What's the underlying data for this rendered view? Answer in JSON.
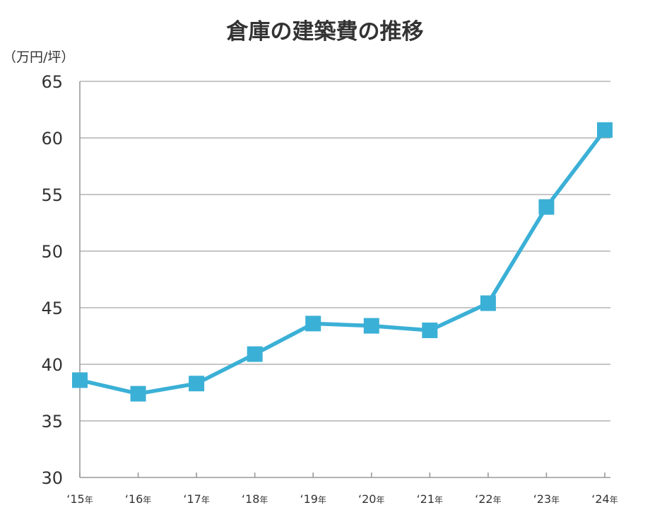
{
  "chart_data": {
    "type": "line",
    "title": "倉庫の建築費の推移",
    "ylabel": "（万円/坪）",
    "xlabel": "",
    "categories": [
      "‘15年",
      "‘16年",
      "‘17年",
      "‘18年",
      "‘19年",
      "‘20年",
      "‘21年",
      "‘22年",
      "‘23年",
      "‘24年"
    ],
    "series": [
      {
        "values": [
          38.6,
          37.4,
          38.3,
          40.9,
          43.6,
          43.4,
          43.0,
          45.4,
          53.9,
          60.7
        ]
      }
    ],
    "ylim": [
      30,
      65
    ],
    "yticks": [
      "30",
      "35",
      "40",
      "45",
      "50",
      "55",
      "60",
      "65"
    ],
    "grid": true,
    "legend": "none",
    "colors": {
      "series": "#3bb0d6",
      "grid": "#b3b3b3",
      "axis": "#999999",
      "text": "#333333"
    },
    "marker": "square"
  }
}
